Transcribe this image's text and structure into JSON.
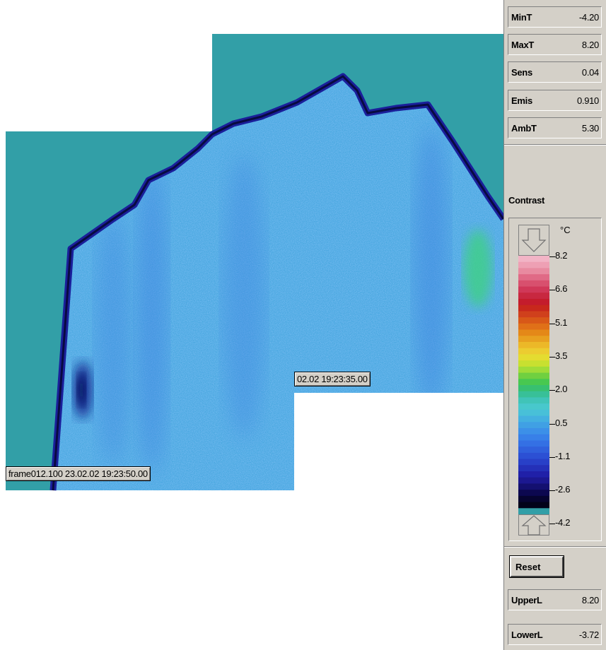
{
  "frames": {
    "front_label": "frame012.100  23.02.02 19:23:50.00",
    "back_label": "02.02 19:23:35.00"
  },
  "parameters": [
    {
      "name": "MinT",
      "value": "-4.20"
    },
    {
      "name": "MaxT",
      "value": "8.20"
    },
    {
      "name": "Sens",
      "value": "0.04"
    },
    {
      "name": "Emis",
      "value": "0.910"
    },
    {
      "name": "AmbT",
      "value": "5.30"
    }
  ],
  "contrast": {
    "title": "Contrast",
    "unit": "°C",
    "scale_labels": [
      "8.2",
      "6.6",
      "5.1",
      "3.5",
      "2.0",
      "0.5",
      "-1.1",
      "-2.6",
      "-4.2"
    ]
  },
  "controls": {
    "reset_label": "Reset",
    "upper": {
      "name": "UpperL",
      "value": "8.20"
    },
    "lower": {
      "name": "LowerL",
      "value": "-3.72"
    }
  },
  "colors": {
    "background_teal": "#329fa7",
    "panel_gray": "#d4d0c8"
  }
}
